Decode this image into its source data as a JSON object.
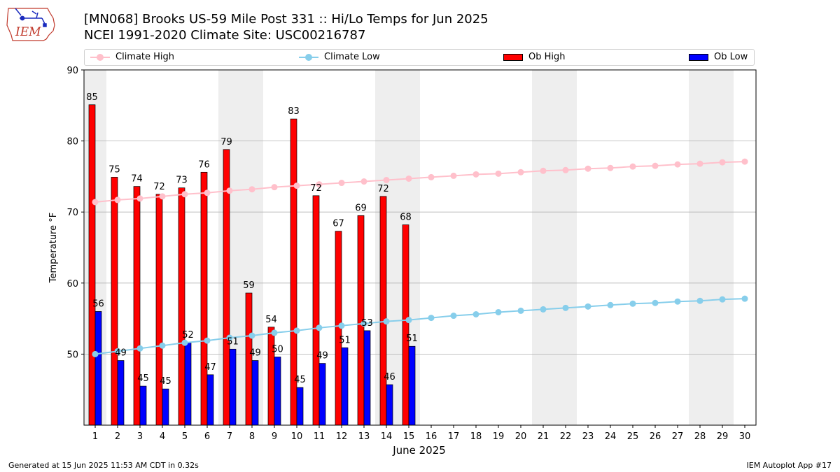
{
  "header": {
    "title_line1": "[MN068] Brooks US-59 Mile Post 331 :: Hi/Lo Temps for Jun 2025",
    "title_line2": "NCEI 1991-2020 Climate Site: USC00216787",
    "logo_text": "IEM"
  },
  "footer": {
    "generated": "Generated at 15 Jun 2025 11:53 AM CDT in 0.32s",
    "app": "IEM Autoplot App #17"
  },
  "colors": {
    "ob_high": "#ff0000",
    "ob_low": "#0000ff",
    "climate_high": "#ffc0cb",
    "climate_low": "#87ceeb",
    "weekend_shade": "#eeeeee",
    "grid": "#b0b0b0"
  },
  "chart_data": {
    "type": "bar",
    "xlabel": "June 2025",
    "ylabel": "Temperature °F",
    "ylim": [
      40,
      90
    ],
    "yticks": [
      50,
      60,
      70,
      80,
      90
    ],
    "grid": true,
    "legend_position": "top",
    "categories": [
      "1",
      "2",
      "3",
      "4",
      "5",
      "6",
      "7",
      "8",
      "9",
      "10",
      "11",
      "12",
      "13",
      "14",
      "15",
      "16",
      "17",
      "18",
      "19",
      "20",
      "21",
      "22",
      "23",
      "24",
      "25",
      "26",
      "27",
      "28",
      "29",
      "30"
    ],
    "weekend_days": [
      [
        1,
        1
      ],
      [
        7,
        8
      ],
      [
        14,
        15
      ],
      [
        21,
        22
      ],
      [
        28,
        29
      ]
    ],
    "series": [
      {
        "name": "Climate High",
        "type": "line",
        "values": [
          71.4,
          71.7,
          71.9,
          72.2,
          72.5,
          72.7,
          73.0,
          73.2,
          73.5,
          73.7,
          73.9,
          74.1,
          74.3,
          74.5,
          74.7,
          74.9,
          75.1,
          75.3,
          75.4,
          75.6,
          75.8,
          75.9,
          76.1,
          76.2,
          76.4,
          76.5,
          76.7,
          76.8,
          77.0,
          77.1
        ]
      },
      {
        "name": "Climate Low",
        "type": "line",
        "values": [
          50.0,
          50.4,
          50.8,
          51.2,
          51.6,
          51.9,
          52.3,
          52.6,
          53.0,
          53.3,
          53.7,
          54.0,
          54.3,
          54.6,
          54.8,
          55.1,
          55.4,
          55.6,
          55.9,
          56.1,
          56.3,
          56.5,
          56.7,
          56.9,
          57.1,
          57.2,
          57.4,
          57.5,
          57.7,
          57.8
        ]
      },
      {
        "name": "Ob High",
        "type": "bar",
        "values": [
          85.1,
          74.9,
          73.6,
          72.5,
          73.4,
          75.6,
          78.8,
          58.6,
          53.8,
          83.1,
          72.3,
          67.3,
          69.5,
          72.2,
          68.2,
          null,
          null,
          null,
          null,
          null,
          null,
          null,
          null,
          null,
          null,
          null,
          null,
          null,
          null,
          null
        ],
        "labels": [
          "85",
          "75",
          "74",
          "72",
          "73",
          "76",
          "79",
          "59",
          "54",
          "83",
          "72",
          "67",
          "69",
          "72",
          "68"
        ]
      },
      {
        "name": "Ob Low",
        "type": "bar",
        "values": [
          56.0,
          49.1,
          45.5,
          45.1,
          51.6,
          47.1,
          50.7,
          49.1,
          49.6,
          45.3,
          48.7,
          50.9,
          53.3,
          45.7,
          51.1,
          null,
          null,
          null,
          null,
          null,
          null,
          null,
          null,
          null,
          null,
          null,
          null,
          null,
          null,
          null
        ],
        "labels": [
          "56",
          "49",
          "45",
          "45",
          "52",
          "47",
          "51",
          "49",
          "50",
          "45",
          "49",
          "51",
          "53",
          "46",
          "51"
        ]
      }
    ]
  }
}
